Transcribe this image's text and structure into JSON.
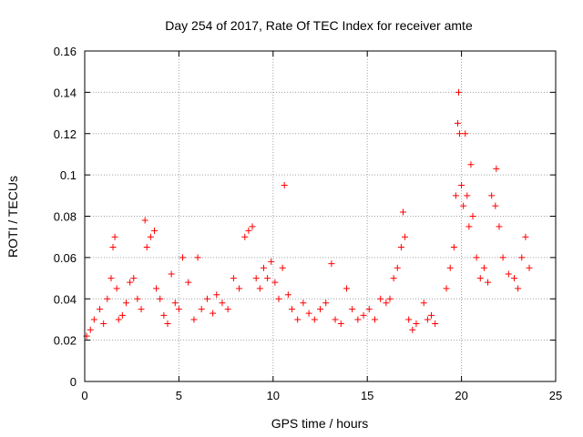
{
  "chart_data": {
    "type": "scatter",
    "title": "Day 254 of 2017, Rate Of TEC Index for receiver amte",
    "xlabel": "GPS time / hours",
    "ylabel": "ROTI / TECUs",
    "xlim": [
      0,
      25
    ],
    "ylim": [
      0,
      0.16
    ],
    "x_ticks": [
      0,
      5,
      10,
      15,
      20,
      25
    ],
    "x_tick_labels": [
      "0",
      "5",
      "10",
      "15",
      "20",
      "25"
    ],
    "y_ticks": [
      0,
      0.02,
      0.04,
      0.06,
      0.08,
      0.1,
      0.12,
      0.14,
      0.16
    ],
    "y_tick_labels": [
      "0",
      "0.02",
      "0.04",
      "0.06",
      "0.08",
      "0.1",
      "0.12",
      "0.14",
      "0.16"
    ],
    "grid": true,
    "marker": "plus",
    "color": "#ff0000",
    "series": [
      {
        "name": "ROTI",
        "x": [
          0.1,
          0.3,
          0.5,
          0.8,
          1.0,
          1.2,
          1.4,
          1.5,
          1.6,
          1.7,
          1.8,
          2.0,
          2.2,
          2.4,
          2.6,
          2.8,
          3.0,
          3.2,
          3.3,
          3.5,
          3.7,
          3.8,
          4.0,
          4.2,
          4.4,
          4.6,
          4.8,
          5.0,
          5.2,
          5.5,
          5.8,
          6.0,
          6.2,
          6.5,
          6.8,
          7.0,
          7.3,
          7.6,
          7.9,
          8.2,
          8.5,
          8.7,
          8.9,
          9.1,
          9.3,
          9.5,
          9.7,
          9.9,
          10.1,
          10.3,
          10.5,
          10.6,
          10.8,
          11.0,
          11.3,
          11.6,
          11.9,
          12.2,
          12.5,
          12.8,
          13.1,
          13.3,
          13.6,
          13.9,
          14.2,
          14.5,
          14.8,
          15.1,
          15.4,
          15.7,
          16.0,
          16.2,
          16.4,
          16.6,
          16.8,
          16.9,
          17.0,
          17.2,
          17.4,
          17.6,
          18.0,
          18.2,
          18.4,
          18.6,
          19.2,
          19.4,
          19.6,
          19.7,
          19.8,
          19.85,
          19.9,
          20.0,
          20.1,
          20.2,
          20.3,
          20.4,
          20.5,
          20.6,
          20.8,
          21.0,
          21.2,
          21.4,
          21.6,
          21.8,
          21.85,
          22.0,
          22.2,
          22.5,
          22.8,
          23.0,
          23.2,
          23.4,
          23.6
        ],
        "y": [
          0.022,
          0.025,
          0.03,
          0.035,
          0.028,
          0.04,
          0.05,
          0.065,
          0.07,
          0.045,
          0.03,
          0.032,
          0.038,
          0.048,
          0.05,
          0.04,
          0.035,
          0.078,
          0.065,
          0.07,
          0.073,
          0.045,
          0.04,
          0.032,
          0.028,
          0.052,
          0.038,
          0.035,
          0.06,
          0.048,
          0.03,
          0.06,
          0.035,
          0.04,
          0.033,
          0.042,
          0.038,
          0.035,
          0.05,
          0.045,
          0.07,
          0.073,
          0.075,
          0.05,
          0.045,
          0.055,
          0.05,
          0.058,
          0.048,
          0.04,
          0.055,
          0.095,
          0.042,
          0.035,
          0.03,
          0.038,
          0.033,
          0.03,
          0.035,
          0.038,
          0.057,
          0.03,
          0.028,
          0.045,
          0.035,
          0.03,
          0.032,
          0.035,
          0.03,
          0.04,
          0.038,
          0.04,
          0.05,
          0.055,
          0.065,
          0.082,
          0.07,
          0.03,
          0.025,
          0.028,
          0.038,
          0.03,
          0.032,
          0.028,
          0.045,
          0.055,
          0.065,
          0.09,
          0.125,
          0.14,
          0.12,
          0.095,
          0.085,
          0.12,
          0.09,
          0.075,
          0.105,
          0.08,
          0.06,
          0.05,
          0.055,
          0.048,
          0.09,
          0.085,
          0.103,
          0.075,
          0.06,
          0.052,
          0.05,
          0.045,
          0.06,
          0.07,
          0.055
        ]
      }
    ]
  }
}
